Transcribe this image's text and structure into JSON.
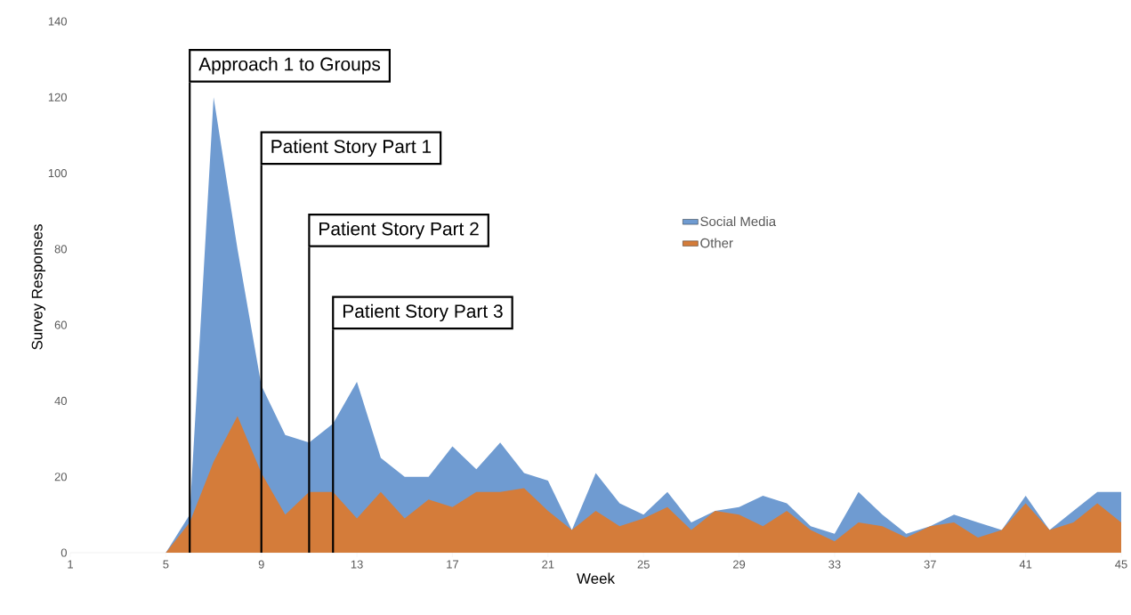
{
  "chart_data": {
    "type": "area",
    "xlabel": "Week",
    "ylabel": "Survey Responses",
    "x": [
      1,
      2,
      3,
      4,
      5,
      6,
      7,
      8,
      9,
      10,
      11,
      12,
      13,
      14,
      15,
      16,
      17,
      18,
      19,
      20,
      21,
      22,
      23,
      24,
      25,
      26,
      27,
      28,
      29,
      30,
      31,
      32,
      33,
      34,
      35,
      36,
      37,
      38,
      39,
      40,
      41,
      42,
      43,
      44,
      45
    ],
    "series": [
      {
        "name": "Social Media",
        "color": "#6f9bd1",
        "values": [
          0,
          0,
          0,
          0,
          0,
          10,
          120,
          80,
          44,
          31,
          29,
          34,
          45,
          25,
          20,
          20,
          28,
          22,
          29,
          21,
          19,
          6,
          21,
          13,
          10,
          16,
          8,
          11,
          12,
          15,
          13,
          7,
          5,
          16,
          10,
          5,
          7,
          10,
          8,
          6,
          15,
          6,
          11,
          16,
          16
        ]
      },
      {
        "name": "Other",
        "color": "#d47c3a",
        "values": [
          0,
          0,
          0,
          0,
          0,
          8,
          24,
          36,
          21,
          10,
          16,
          16,
          9,
          16,
          9,
          14,
          12,
          16,
          16,
          17,
          11,
          6,
          11,
          7,
          9,
          12,
          6,
          11,
          10,
          7,
          11,
          6,
          3,
          8,
          7,
          4,
          7,
          8,
          4,
          6,
          13,
          6,
          8,
          13,
          8
        ]
      }
    ],
    "xlim": [
      1,
      45
    ],
    "xticks": [
      1,
      5,
      9,
      13,
      17,
      21,
      25,
      29,
      33,
      37,
      41,
      45
    ],
    "ylim": [
      0,
      140
    ],
    "yticks": [
      0,
      20,
      40,
      60,
      80,
      100,
      120,
      140
    ],
    "ref_lines": [
      {
        "axis": "x",
        "value": 6,
        "label": "Approach 1 to Groups",
        "color": "#000000"
      },
      {
        "axis": "x",
        "value": 9,
        "label": "Patient Story Part 1",
        "color": "#000000"
      },
      {
        "axis": "x",
        "value": 11,
        "label": "Patient Story Part 2",
        "color": "#000000"
      },
      {
        "axis": "x",
        "value": 12,
        "label": "Patient Story Part 3",
        "color": "#000000"
      }
    ],
    "grid": false,
    "legend": "right"
  }
}
